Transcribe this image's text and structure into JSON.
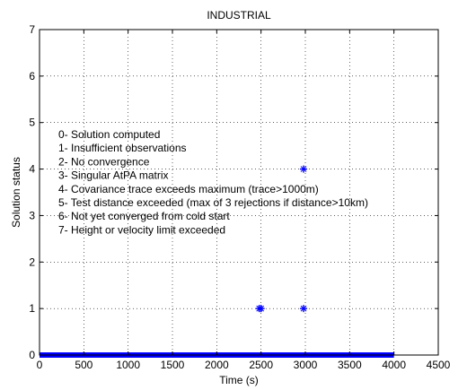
{
  "chart_data": {
    "type": "scatter",
    "title": "INDUSTRIAL",
    "xlabel": "Time (s)",
    "ylabel": "Solution status",
    "xlim": [
      0,
      4500
    ],
    "ylim": [
      0,
      7
    ],
    "xticks": [
      0,
      500,
      1000,
      1500,
      2000,
      2500,
      3000,
      3500,
      4000,
      4500
    ],
    "yticks": [
      0,
      1,
      2,
      3,
      4,
      5,
      6,
      7
    ],
    "grid": true,
    "marker_color": "#0000ff",
    "annotations": [
      "0- Solution computed",
      "1- Insufficient observations",
      "2- No convergence",
      "3- Singular AtPA matrix",
      "4- Covariance trace exceeds maximum (trace>1000m)",
      "5- Test distance exceeded (max of 3 rejections if distance>10km)",
      "6- Not yet converged from cold start",
      "7- Height or velocity limit exceeded"
    ],
    "series": [
      {
        "segment": {
          "x_start": 0,
          "x_end": 4000,
          "y": 0
        },
        "points": [
          {
            "x": 2480,
            "y": 1
          },
          {
            "x": 2500,
            "y": 1
          },
          {
            "x": 2980,
            "y": 1
          },
          {
            "x": 2980,
            "y": 4
          }
        ]
      }
    ]
  }
}
